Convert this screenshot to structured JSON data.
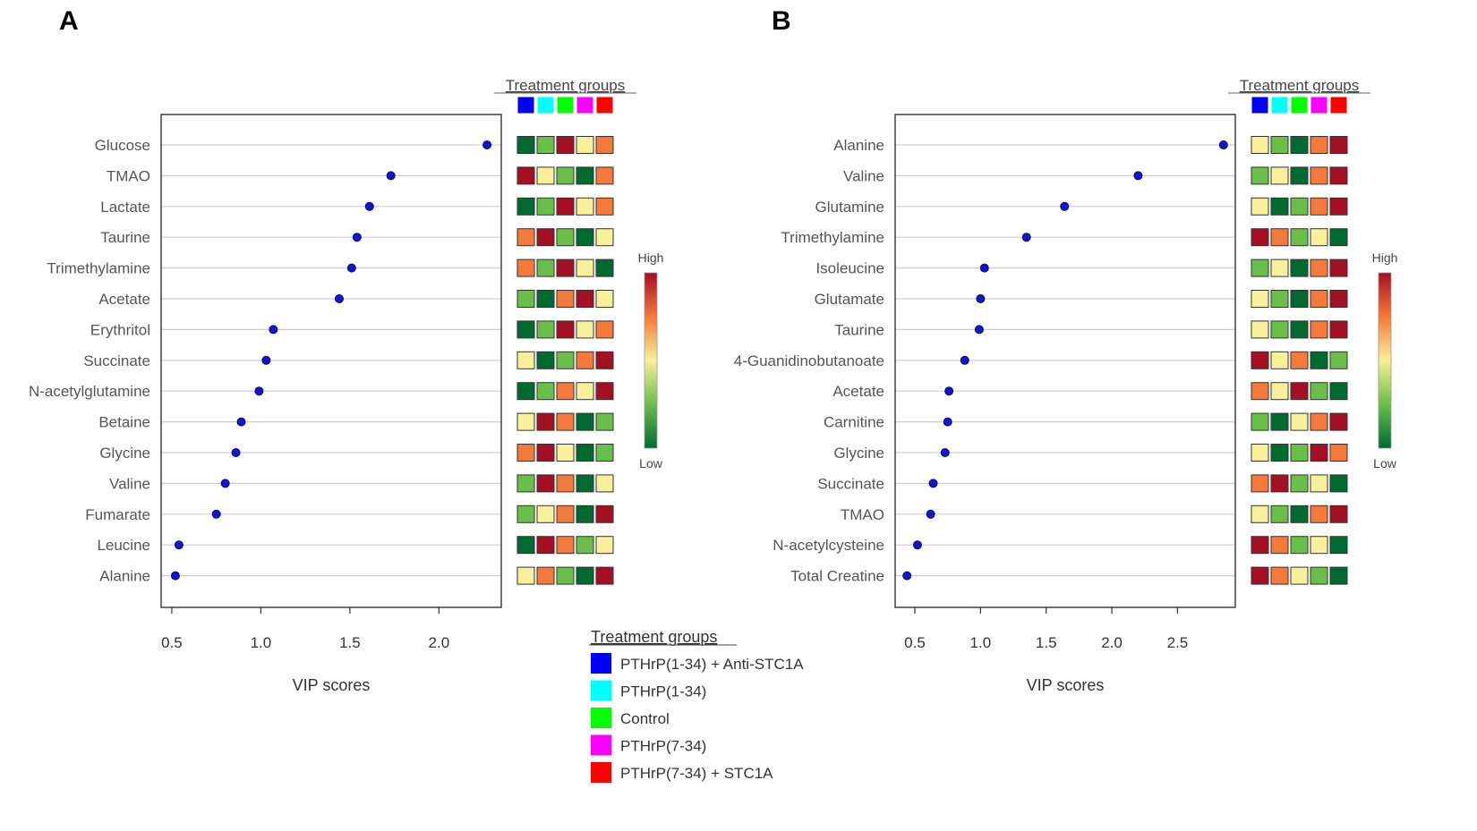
{
  "chart_data": [
    {
      "panel_label": "A",
      "type": "scatter",
      "subtype": "VIP scores dot plot with group heatmap",
      "xlabel": "VIP scores",
      "xlim": [
        0.44,
        2.35
      ],
      "xticks": [
        0.5,
        1.0,
        1.5,
        2.0
      ],
      "xtick_labels": [
        "0.5",
        "1.0",
        "1.5",
        "2.0"
      ],
      "grid": "horizontal",
      "categories": [
        "Glucose",
        "TMAO",
        "Lactate",
        "Taurine",
        "Trimethylamine",
        "Acetate",
        "Erythritol",
        "Succinate",
        "N-acetylglutamine",
        "Betaine",
        "Glycine",
        "Valine",
        "Fumarate",
        "Leucine",
        "Alanine"
      ],
      "values": [
        2.27,
        1.73,
        1.61,
        1.54,
        1.51,
        1.44,
        1.07,
        1.03,
        0.99,
        0.89,
        0.86,
        0.8,
        0.75,
        0.54,
        0.52
      ],
      "heatmap_title": "Treatment groups",
      "heatmap_levels": [
        [
          1,
          2,
          5,
          3,
          4
        ],
        [
          5,
          3,
          2,
          1,
          4
        ],
        [
          1,
          2,
          5,
          3,
          4
        ],
        [
          4,
          5,
          2,
          1,
          3
        ],
        [
          4,
          2,
          5,
          3,
          1
        ],
        [
          2,
          1,
          4,
          5,
          3
        ],
        [
          1,
          2,
          5,
          3,
          4
        ],
        [
          3,
          1,
          2,
          4,
          5
        ],
        [
          1,
          2,
          4,
          3,
          5
        ],
        [
          3,
          5,
          4,
          1,
          2
        ],
        [
          4,
          5,
          3,
          1,
          2
        ],
        [
          2,
          5,
          4,
          1,
          3
        ],
        [
          2,
          3,
          4,
          1,
          5
        ],
        [
          1,
          5,
          4,
          2,
          3
        ],
        [
          3,
          4,
          2,
          1,
          5
        ]
      ],
      "colorbar_high": "High",
      "colorbar_low": "Low"
    },
    {
      "panel_label": "B",
      "type": "scatter",
      "subtype": "VIP scores dot plot with group heatmap",
      "xlabel": "VIP scores",
      "xlim": [
        0.35,
        2.94
      ],
      "xticks": [
        0.5,
        1.0,
        1.5,
        2.0,
        2.5
      ],
      "xtick_labels": [
        "0.5",
        "1.0",
        "1.5",
        "2.0",
        "2.5"
      ],
      "grid": "horizontal",
      "categories": [
        "Alanine",
        "Valine",
        "Glutamine",
        "Trimethylamine",
        "Isoleucine",
        "Glutamate",
        "Taurine",
        "4-Guanidinobutanoate",
        "Acetate",
        "Carnitine",
        "Glycine",
        "Succinate",
        "TMAO",
        "N-acetylcysteine",
        "Total Creatine"
      ],
      "values": [
        2.85,
        2.2,
        1.64,
        1.35,
        1.03,
        1.0,
        0.99,
        0.88,
        0.76,
        0.75,
        0.73,
        0.64,
        0.62,
        0.52,
        0.44
      ],
      "heatmap_title": "Treatment groups",
      "heatmap_levels": [
        [
          3,
          2,
          1,
          4,
          5
        ],
        [
          2,
          3,
          1,
          4,
          5
        ],
        [
          3,
          1,
          2,
          4,
          5
        ],
        [
          5,
          4,
          2,
          3,
          1
        ],
        [
          2,
          3,
          1,
          4,
          5
        ],
        [
          3,
          2,
          1,
          4,
          5
        ],
        [
          3,
          2,
          1,
          4,
          5
        ],
        [
          5,
          3,
          4,
          1,
          2
        ],
        [
          4,
          3,
          5,
          2,
          1
        ],
        [
          2,
          1,
          3,
          4,
          5
        ],
        [
          3,
          1,
          2,
          5,
          4
        ],
        [
          4,
          5,
          2,
          3,
          1
        ],
        [
          3,
          2,
          1,
          4,
          5
        ],
        [
          5,
          4,
          2,
          3,
          1
        ],
        [
          5,
          4,
          3,
          2,
          1
        ]
      ],
      "colorbar_high": "High",
      "colorbar_low": "Low"
    }
  ],
  "treatment_groups": {
    "title": "Treatment groups",
    "items": [
      {
        "label": "PTHrP(1-34) + Anti-STC1A",
        "color": "#0000ff"
      },
      {
        "label": "PTHrP(1-34)",
        "color": "#00ffff"
      },
      {
        "label": "Control",
        "color": "#00ff00"
      },
      {
        "label": "PTHrP(7-34)",
        "color": "#ff00ff"
      },
      {
        "label": "PTHrP(7-34) + STC1A",
        "color": "#ff0000"
      }
    ]
  },
  "heatmap_colors": [
    "#006b30",
    "#6abf4b",
    "#f8f09a",
    "#f5793a",
    "#a50f24"
  ],
  "marker_color": "#1414c8"
}
